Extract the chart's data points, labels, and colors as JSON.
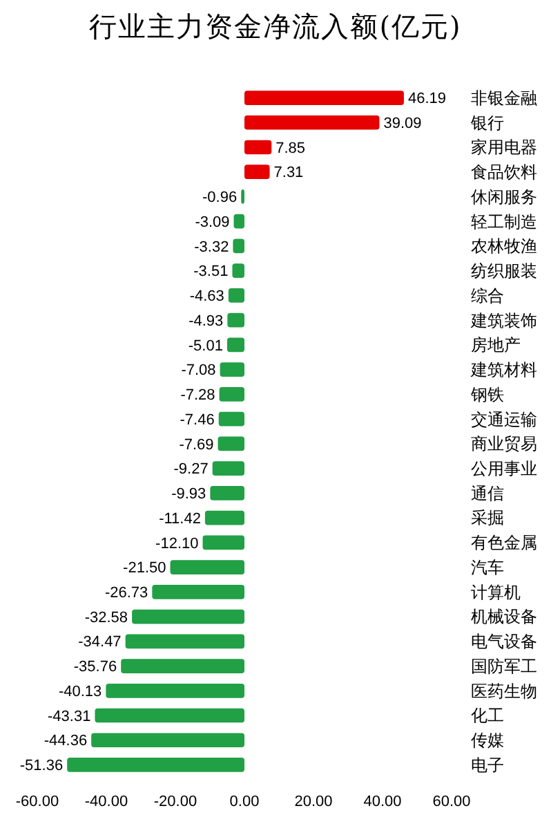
{
  "chart_data": {
    "type": "bar",
    "orientation": "horizontal",
    "title": "行业主力资金净流入额(亿元)",
    "categories": [
      "非银金融",
      "银行",
      "家用电器",
      "食品饮料",
      "休闲服务",
      "轻工制造",
      "农林牧渔",
      "纺织服装",
      "综合",
      "建筑装饰",
      "房地产",
      "建筑材料",
      "钢铁",
      "交通运输",
      "商业贸易",
      "公用事业",
      "通信",
      "采掘",
      "有色金属",
      "汽车",
      "计算机",
      "机械设备",
      "电气设备",
      "国防军工",
      "医药生物",
      "化工",
      "传媒",
      "电子"
    ],
    "values": [
      46.19,
      39.09,
      7.85,
      7.31,
      -0.96,
      -3.09,
      -3.32,
      -3.51,
      -4.63,
      -4.93,
      -5.01,
      -7.08,
      -7.28,
      -7.46,
      -7.69,
      -9.27,
      -9.93,
      -11.42,
      -12.1,
      -21.5,
      -26.73,
      -32.58,
      -34.47,
      -35.76,
      -40.13,
      -43.31,
      -44.36,
      -51.36
    ],
    "value_labels": [
      "46.19",
      "39.09",
      "7.85",
      "7.31",
      "-0.96",
      "-3.09",
      "-3.32",
      "-3.51",
      "-4.63",
      "-4.93",
      "-5.01",
      "-7.08",
      "-7.28",
      "-7.46",
      "-7.69",
      "-9.27",
      "-9.93",
      "-11.42",
      "-12.10",
      "-21.50",
      "-26.73",
      "-32.58",
      "-34.47",
      "-35.76",
      "-40.13",
      "-43.31",
      "-44.36",
      "-51.36"
    ],
    "colors": [
      "#e60000",
      "#e60000",
      "#e60000",
      "#e60000",
      "#21a045",
      "#21a045",
      "#21a045",
      "#21a045",
      "#21a045",
      "#21a045",
      "#21a045",
      "#21a045",
      "#21a045",
      "#21a045",
      "#21a045",
      "#21a045",
      "#21a045",
      "#21a045",
      "#21a045",
      "#21a045",
      "#21a045",
      "#21a045",
      "#21a045",
      "#21a045",
      "#21a045",
      "#21a045",
      "#21a045",
      "#21a045"
    ],
    "xlim": [
      -60,
      60
    ],
    "xticks": [
      {
        "value": -60,
        "label": "-60.00"
      },
      {
        "value": -40,
        "label": "-40.00"
      },
      {
        "value": -20,
        "label": "-20.00"
      },
      {
        "value": 0,
        "label": "0.00"
      },
      {
        "value": 20,
        "label": "20.00"
      },
      {
        "value": 40,
        "label": "40.00"
      },
      {
        "value": 60,
        "label": "60.00"
      }
    ]
  }
}
